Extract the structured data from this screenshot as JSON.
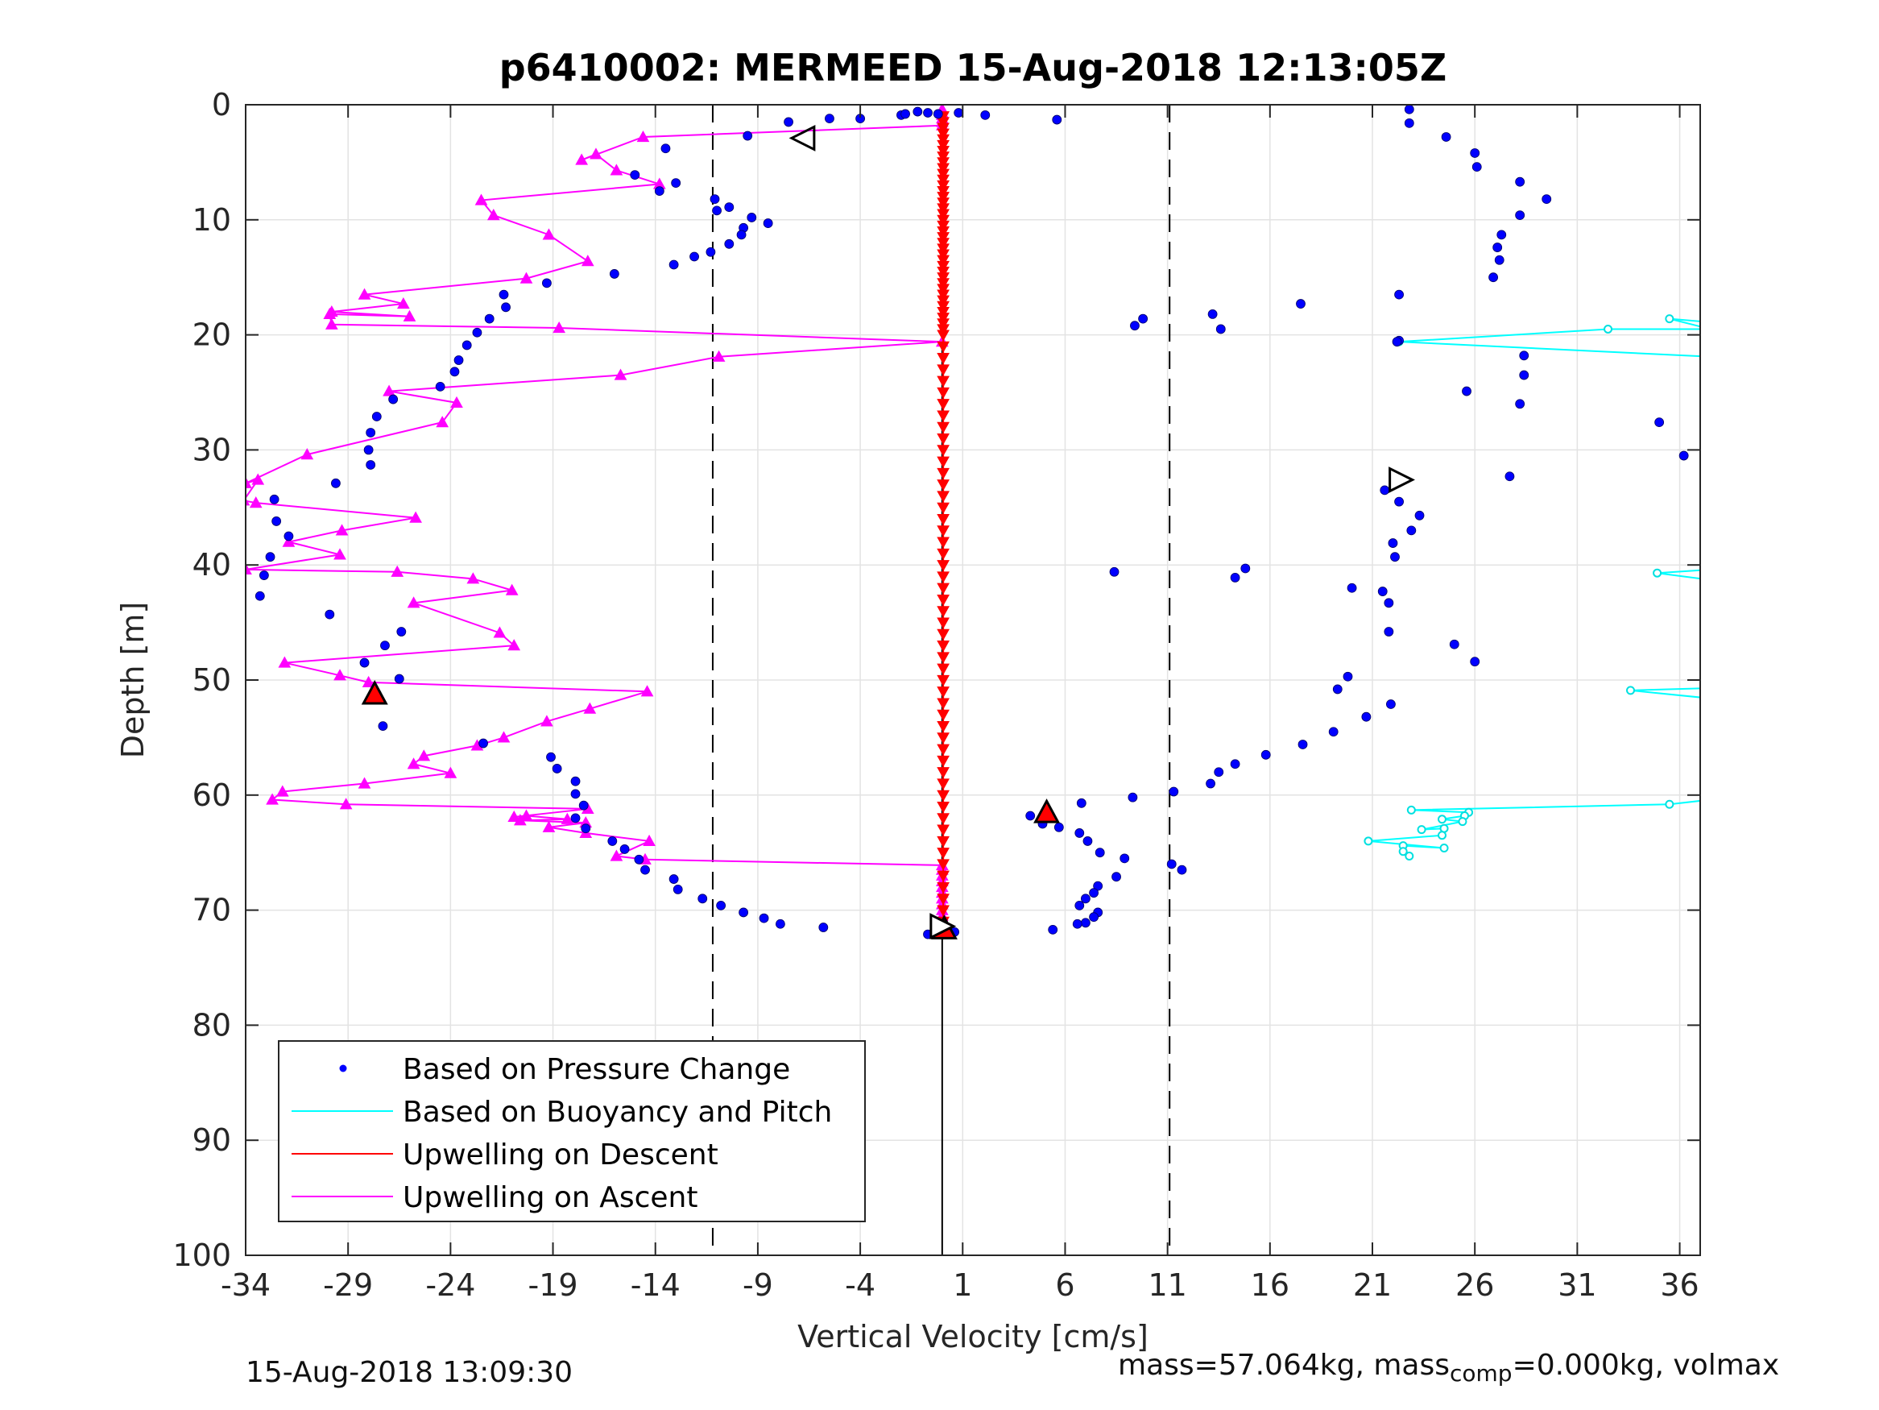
{
  "footer": {
    "timestamp": "15-Aug-2018 13:09:30",
    "mass_part1": "mass=57.064kg, mass",
    "mass_sub": "comp",
    "mass_part2": "=0.000kg, volmax"
  },
  "chart_data": {
    "type": "scatter",
    "title": "p6410002: MERMEED 15-Aug-2018 12:13:05Z",
    "xlabel": "Vertical Velocity [cm/s]",
    "ylabel": "Depth [m]",
    "xlim": [
      -34,
      37
    ],
    "ylim": [
      0,
      100
    ],
    "y_reversed": true,
    "grid": true,
    "xticks": [
      -34,
      -29,
      -24,
      -19,
      -14,
      -9,
      -4,
      1,
      6,
      11,
      16,
      21,
      26,
      31,
      36
    ],
    "yticks": [
      0,
      10,
      20,
      30,
      40,
      50,
      60,
      70,
      80,
      90,
      100
    ],
    "dashed_vlines": [
      -11.2,
      11.1
    ],
    "solid_vline": 0,
    "legend_position": "bottom-left",
    "legend": [
      {
        "label": "Based on Pressure Change",
        "color": "#0000ff",
        "style": "dot"
      },
      {
        "label": "Based on Buoyancy and Pitch",
        "color": "#00ffff",
        "style": "line"
      },
      {
        "label": "Upwelling on Descent",
        "color": "#ff0000",
        "style": "line"
      },
      {
        "label": "Upwelling on Ascent",
        "color": "#ff00ff",
        "style": "line"
      }
    ],
    "pressure_change": [
      [
        -7.5,
        1.5
      ],
      [
        -5.5,
        1.2
      ],
      [
        -4,
        1.2
      ],
      [
        -2,
        0.9
      ],
      [
        -1.8,
        0.8
      ],
      [
        -1.2,
        0.6
      ],
      [
        -0.7,
        0.7
      ],
      [
        -0.2,
        0.8
      ],
      [
        0.8,
        0.7
      ],
      [
        2.1,
        0.9
      ],
      [
        5.6,
        1.3
      ],
      [
        -9.5,
        2.7
      ],
      [
        -13.5,
        3.8
      ],
      [
        -15,
        6.1
      ],
      [
        -13,
        6.8
      ],
      [
        -13.8,
        7.5
      ],
      [
        -11.1,
        8.2
      ],
      [
        -11,
        9.2
      ],
      [
        -10.4,
        8.9
      ],
      [
        -9.3,
        9.8
      ],
      [
        -9.7,
        10.7
      ],
      [
        -8.5,
        10.3
      ],
      [
        -9.8,
        11.3
      ],
      [
        -10.4,
        12.1
      ],
      [
        -11.3,
        12.8
      ],
      [
        -12.1,
        13.2
      ],
      [
        -13.1,
        13.9
      ],
      [
        -16,
        14.7
      ],
      [
        -19.3,
        15.5
      ],
      [
        -21.4,
        16.5
      ],
      [
        -21.3,
        17.6
      ],
      [
        -22.1,
        18.6
      ],
      [
        -22.7,
        19.8
      ],
      [
        -23.2,
        20.9
      ],
      [
        -23.6,
        22.2
      ],
      [
        -23.8,
        23.2
      ],
      [
        -24.5,
        24.5
      ],
      [
        -26.8,
        25.6
      ],
      [
        -27.6,
        27.1
      ],
      [
        -27.9,
        28.5
      ],
      [
        -28,
        30
      ],
      [
        -27.9,
        31.3
      ],
      [
        -29.6,
        32.9
      ],
      [
        -32.6,
        34.3
      ],
      [
        -32.5,
        36.2
      ],
      [
        -31.9,
        37.5
      ],
      [
        -32.8,
        39.3
      ],
      [
        -33.1,
        40.9
      ],
      [
        -33.3,
        42.7
      ],
      [
        -29.9,
        44.3
      ],
      [
        -26.4,
        45.8
      ],
      [
        -27.2,
        47
      ],
      [
        -28.2,
        48.5
      ],
      [
        -26.5,
        49.9
      ],
      [
        -27.6,
        51.2
      ],
      [
        -27.3,
        54
      ],
      [
        -22.4,
        55.5
      ],
      [
        -19.1,
        56.7
      ],
      [
        -18.8,
        57.7
      ],
      [
        -17.9,
        58.8
      ],
      [
        -17.9,
        59.9
      ],
      [
        -17.5,
        60.9
      ],
      [
        -17.9,
        62
      ],
      [
        -17.4,
        62.9
      ],
      [
        -16.1,
        64
      ],
      [
        -15.5,
        64.7
      ],
      [
        -14.8,
        65.6
      ],
      [
        -14.5,
        66.5
      ],
      [
        -13.1,
        67.3
      ],
      [
        -12.9,
        68.2
      ],
      [
        -11.7,
        69
      ],
      [
        -10.8,
        69.6
      ],
      [
        -9.7,
        70.2
      ],
      [
        -8.7,
        70.7
      ],
      [
        -7.9,
        71.2
      ],
      [
        -5.8,
        71.5
      ],
      [
        -0.7,
        72.1
      ],
      [
        0.6,
        71.9
      ],
      [
        4.3,
        61.8
      ],
      [
        4.9,
        62.5
      ],
      [
        5.7,
        62.8
      ],
      [
        6.7,
        63.3
      ],
      [
        7.1,
        64
      ],
      [
        7.7,
        65
      ],
      [
        8.9,
        65.5
      ],
      [
        8.5,
        67.1
      ],
      [
        7.6,
        67.9
      ],
      [
        7.4,
        68.5
      ],
      [
        7,
        69
      ],
      [
        6.7,
        69.6
      ],
      [
        7.6,
        70.2
      ],
      [
        7.4,
        70.6
      ],
      [
        7,
        71.1
      ],
      [
        6.6,
        71.2
      ],
      [
        5.4,
        71.7
      ],
      [
        6.8,
        60.7
      ],
      [
        9.3,
        60.2
      ],
      [
        11.2,
        66
      ],
      [
        11.7,
        66.5
      ],
      [
        11.3,
        59.7
      ],
      [
        13.1,
        59
      ],
      [
        13.5,
        58
      ],
      [
        14.3,
        57.3
      ],
      [
        15.8,
        56.5
      ],
      [
        17.6,
        55.6
      ],
      [
        19.1,
        54.5
      ],
      [
        19.3,
        50.8
      ],
      [
        19.8,
        49.7
      ],
      [
        20.7,
        53.2
      ],
      [
        21.9,
        52.1
      ],
      [
        21.5,
        42.3
      ],
      [
        21.8,
        43.3
      ],
      [
        21.8,
        45.8
      ],
      [
        25,
        46.9
      ],
      [
        26,
        48.4
      ],
      [
        22,
        38.1
      ],
      [
        22.1,
        39.3
      ],
      [
        22.9,
        37
      ],
      [
        23.3,
        35.7
      ],
      [
        22.3,
        34.5
      ],
      [
        21.6,
        33.5
      ],
      [
        27.7,
        32.3
      ],
      [
        8.4,
        40.6
      ],
      [
        14.3,
        41.1
      ],
      [
        14.8,
        40.3
      ],
      [
        20,
        42
      ],
      [
        9.4,
        19.2
      ],
      [
        9.8,
        18.6
      ],
      [
        13.2,
        18.2
      ],
      [
        13.6,
        19.5
      ],
      [
        17.5,
        17.3
      ],
      [
        22.3,
        16.5
      ],
      [
        22.3,
        20.5
      ],
      [
        22.2,
        20.6
      ],
      [
        25.6,
        24.9
      ],
      [
        28.4,
        21.8
      ],
      [
        28.4,
        23.5
      ],
      [
        28.2,
        26
      ],
      [
        35,
        27.6
      ],
      [
        36.2,
        30.5
      ],
      [
        22.8,
        0.4
      ],
      [
        22.8,
        1.6
      ],
      [
        24.6,
        2.8
      ],
      [
        26,
        4.2
      ],
      [
        26.1,
        5.4
      ],
      [
        28.2,
        6.7
      ],
      [
        29.5,
        8.2
      ],
      [
        28.2,
        9.6
      ],
      [
        27.3,
        11.3
      ],
      [
        27.1,
        12.4
      ],
      [
        27.2,
        13.5
      ],
      [
        26.9,
        15
      ]
    ],
    "buoyancy_pitch": [
      [
        [
          37.5,
          18.9
        ],
        [
          35.5,
          18.6
        ],
        [
          37.5,
          19.5
        ],
        [
          32.5,
          19.5
        ],
        [
          22.3,
          20.6
        ],
        [
          37.5,
          21.9
        ]
      ],
      [
        [
          37.5,
          40.4
        ],
        [
          34.9,
          40.7
        ],
        [
          37.5,
          41.3
        ]
      ],
      [
        [
          37.5,
          50.7
        ],
        [
          33.6,
          50.9
        ],
        [
          37.5,
          51.6
        ]
      ],
      [
        [
          37.5,
          60.4
        ],
        [
          35.5,
          60.8
        ],
        [
          22.9,
          61.3
        ],
        [
          25.7,
          61.5
        ],
        [
          25.5,
          61.8
        ],
        [
          24.4,
          62.1
        ],
        [
          25.4,
          62.3
        ],
        [
          23.4,
          63
        ],
        [
          24.5,
          62.9
        ],
        [
          24.4,
          63.5
        ],
        [
          20.8,
          64
        ],
        [
          24.5,
          64.6
        ],
        [
          22.5,
          64.4
        ],
        [
          22.5,
          64.9
        ],
        [
          22.8,
          65.3
        ]
      ]
    ],
    "upwelling_descent": {
      "x": 0.05,
      "depths": [
        1,
        1.5,
        2,
        2.5,
        3,
        3.5,
        4,
        4.5,
        5,
        5.5,
        6,
        6.5,
        7,
        7.5,
        8,
        8.5,
        9,
        9.5,
        10,
        10.5,
        11,
        11.5,
        12,
        12.5,
        13,
        13.5,
        14,
        14.5,
        15,
        15.5,
        16,
        16.5,
        17,
        17.5,
        18,
        18.5,
        19,
        19.5,
        20,
        21,
        22,
        23,
        24,
        25,
        26,
        27,
        28,
        29,
        30,
        31,
        32,
        33,
        34,
        35,
        36,
        37,
        38,
        39,
        40,
        41,
        42,
        43,
        44,
        45,
        46,
        47,
        48,
        49,
        50,
        51,
        52,
        53,
        54,
        55,
        56,
        57,
        58,
        59,
        60,
        61,
        62,
        63,
        64,
        65,
        66,
        67,
        68,
        69,
        70,
        71,
        72
      ]
    },
    "upwelling_ascent": [
      [
        0,
        71.5
      ],
      [
        0,
        71
      ],
      [
        0,
        70.5
      ],
      [
        0,
        70
      ],
      [
        0,
        69.5
      ],
      [
        0,
        69
      ],
      [
        0,
        68.5
      ],
      [
        0,
        68
      ],
      [
        0,
        67.5
      ],
      [
        0,
        67
      ],
      [
        0,
        66.5
      ],
      [
        0,
        66.1
      ],
      [
        -14.5,
        65.6
      ],
      [
        -15.9,
        65.3
      ],
      [
        -14.3,
        64
      ],
      [
        -17.4,
        63.3
      ],
      [
        -19.2,
        62.8
      ],
      [
        -17.4,
        62.4
      ],
      [
        -20.6,
        62.2
      ],
      [
        -18.3,
        62.1
      ],
      [
        -20.3,
        61.8
      ],
      [
        -20.9,
        61.9
      ],
      [
        -17.3,
        61.2
      ],
      [
        -29.1,
        60.8
      ],
      [
        -32.7,
        60.4
      ],
      [
        -32.2,
        59.7
      ],
      [
        -28.2,
        59
      ],
      [
        -24,
        58.1
      ],
      [
        -25.8,
        57.3
      ],
      [
        -25.3,
        56.6
      ],
      [
        -22.7,
        55.7
      ],
      [
        -21.4,
        55
      ],
      [
        -19.3,
        53.6
      ],
      [
        -17.2,
        52.5
      ],
      [
        -14.4,
        51
      ],
      [
        -28,
        50.2
      ],
      [
        -29.4,
        49.6
      ],
      [
        -32.1,
        48.5
      ],
      [
        -20.9,
        47
      ],
      [
        -21.6,
        45.9
      ],
      [
        -25.8,
        43.3
      ],
      [
        -21,
        42.2
      ],
      [
        -22.9,
        41.2
      ],
      [
        -26.6,
        40.6
      ],
      [
        -34,
        40.4
      ],
      [
        -29.4,
        39.1
      ],
      [
        -31.9,
        38
      ],
      [
        -29.3,
        37
      ],
      [
        -25.7,
        35.9
      ],
      [
        -33.5,
        34.6
      ],
      [
        -34.1,
        34.4
      ],
      [
        -33.4,
        32.6
      ],
      [
        -34,
        32.9
      ],
      [
        -31,
        30.4
      ],
      [
        -24.4,
        27.6
      ],
      [
        -23.7,
        25.9
      ],
      [
        -27,
        24.9
      ],
      [
        -15.7,
        23.5
      ],
      [
        -10.9,
        21.9
      ],
      [
        0,
        20.6
      ],
      [
        -18.7,
        19.4
      ],
      [
        -29.8,
        19.1
      ],
      [
        -29.9,
        18.2
      ],
      [
        -26,
        18.4
      ],
      [
        -29.8,
        18
      ],
      [
        -26.3,
        17.3
      ],
      [
        -28.2,
        16.5
      ],
      [
        -20.3,
        15.1
      ],
      [
        -17.3,
        13.6
      ],
      [
        -19.2,
        11.3
      ],
      [
        -21.9,
        9.6
      ],
      [
        -22.5,
        8.3
      ],
      [
        -13.8,
        6.9
      ],
      [
        -15.9,
        5.7
      ],
      [
        -16.9,
        4.3
      ],
      [
        -17.6,
        4.8
      ],
      [
        -14.6,
        2.8
      ],
      [
        0,
        1.8
      ],
      [
        0,
        1.5
      ],
      [
        0,
        1.2
      ],
      [
        0,
        0.9
      ],
      [
        0,
        0.7
      ],
      [
        0,
        0.4
      ]
    ],
    "red_markers": [
      {
        "x": -27.7,
        "y": 51.2
      },
      {
        "x": 5.1,
        "y": 61.5
      },
      {
        "x": 0.1,
        "y": 71.6
      }
    ],
    "open_markers": [
      {
        "x": -6.8,
        "y": 2.9,
        "direction": "left"
      },
      {
        "x": 22.4,
        "y": 32.6,
        "direction": "right"
      },
      {
        "x": 0,
        "y": 71.4,
        "direction": "right"
      }
    ]
  }
}
